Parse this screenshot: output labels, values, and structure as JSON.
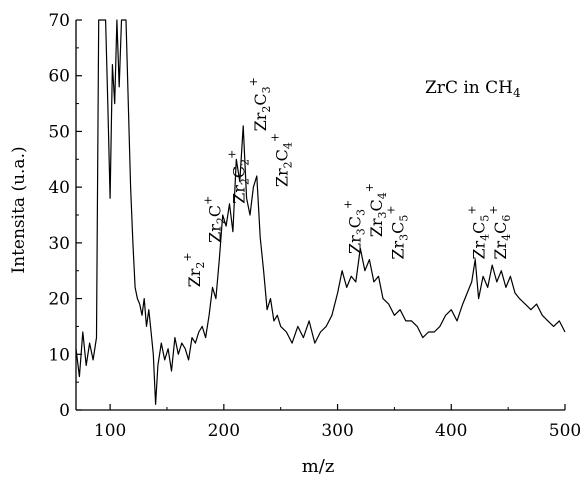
{
  "chart_data": {
    "type": "line",
    "title": "",
    "xlabel": "m/z",
    "ylabel": "Intensita (u.a.)",
    "xlim": [
      70,
      500
    ],
    "ylim": [
      0,
      70
    ],
    "x_ticks": [
      100,
      200,
      300,
      400,
      500
    ],
    "y_ticks": [
      0,
      10,
      20,
      30,
      40,
      50,
      60,
      70
    ],
    "grid": false,
    "legend": "none",
    "inset_label": {
      "base": "ZrC in CH",
      "sub": "4"
    },
    "line_color": "#000000",
    "series": [
      {
        "x": [
          70,
          73,
          76,
          79,
          82,
          85,
          88,
          90,
          92,
          94,
          96,
          98,
          100,
          102,
          104,
          106,
          108,
          110,
          112,
          114,
          116,
          118,
          120,
          122,
          124,
          126,
          128,
          130,
          132,
          134,
          136,
          138,
          140,
          142,
          145,
          148,
          151,
          154,
          157,
          160,
          163,
          166,
          169,
          172,
          175,
          178,
          181,
          184,
          187,
          190,
          193,
          196,
          199,
          202,
          205,
          208,
          211,
          214,
          217,
          220,
          223,
          226,
          229,
          232,
          235,
          238,
          241,
          244,
          247,
          250,
          255,
          260,
          265,
          270,
          275,
          280,
          285,
          290,
          295,
          300,
          304,
          308,
          312,
          316,
          320,
          324,
          328,
          332,
          336,
          340,
          345,
          350,
          355,
          360,
          365,
          370,
          375,
          380,
          385,
          390,
          395,
          400,
          405,
          410,
          414,
          418,
          421,
          424,
          428,
          432,
          436,
          440,
          444,
          448,
          452,
          456,
          460,
          465,
          470,
          475,
          480,
          485,
          490,
          495,
          500
        ],
        "y": [
          11,
          6,
          14,
          8,
          12,
          9,
          13,
          70,
          70,
          70,
          70,
          55,
          38,
          62,
          55,
          70,
          58,
          70,
          70,
          70,
          55,
          40,
          30,
          22,
          20,
          19,
          17,
          20,
          15,
          18,
          14,
          10,
          1,
          8,
          12,
          9,
          11,
          7,
          13,
          10,
          12,
          11,
          9,
          13,
          12,
          14,
          15,
          13,
          17,
          22,
          20,
          27,
          35,
          33,
          37,
          32,
          45,
          41,
          51,
          38,
          35,
          40,
          42,
          31,
          25,
          18,
          20,
          16,
          17,
          15,
          14,
          12,
          15,
          13,
          16,
          12,
          14,
          15,
          17,
          21,
          25,
          22,
          24,
          23,
          29,
          25,
          27,
          23,
          24,
          20,
          19,
          17,
          18,
          16,
          16,
          15,
          13,
          14,
          14,
          15,
          17,
          18,
          16,
          19,
          21,
          23,
          27,
          20,
          24,
          22,
          26,
          23,
          25,
          22,
          24,
          21,
          20,
          19,
          18,
          19,
          17,
          16,
          15,
          16,
          14
        ]
      }
    ],
    "annotations": [
      {
        "base": "Zr",
        "sub": "2",
        "sup": "+",
        "x": 179,
        "y": 22
      },
      {
        "base": "Zr",
        "sub": "2",
        "mid": "C",
        "sup": "+",
        "x": 197,
        "y": 30
      },
      {
        "base": "Zr",
        "sub": "2",
        "mid": "C",
        "sub2": "2",
        "sup": "+",
        "x": 218,
        "y": 37
      },
      {
        "base": "Zr",
        "sub": "2",
        "mid": "C",
        "sub2": "3",
        "sup": "+",
        "x": 237,
        "y": 50
      },
      {
        "base": "Zr",
        "sub": "2",
        "mid": "C",
        "sub2": "4",
        "sup": "+",
        "x": 256,
        "y": 40
      },
      {
        "base": "Zr",
        "sub": "3",
        "mid": "C",
        "sub2": "3",
        "sup": "+",
        "x": 320,
        "y": 28
      },
      {
        "base": "Zr",
        "sub": "3",
        "mid": "C",
        "sub2": "4",
        "sup": "+",
        "x": 339,
        "y": 31
      },
      {
        "base": "Zr",
        "sub": "3",
        "mid": "C",
        "sub2": "5",
        "sup": "+",
        "x": 358,
        "y": 27
      },
      {
        "base": "Zr",
        "sub": "4",
        "mid": "C",
        "sub2": "5",
        "sup": "+",
        "x": 429,
        "y": 27
      },
      {
        "base": "Zr",
        "sub": "4",
        "mid": "C",
        "sub2": "6",
        "sup": "+",
        "x": 448,
        "y": 27
      }
    ]
  }
}
